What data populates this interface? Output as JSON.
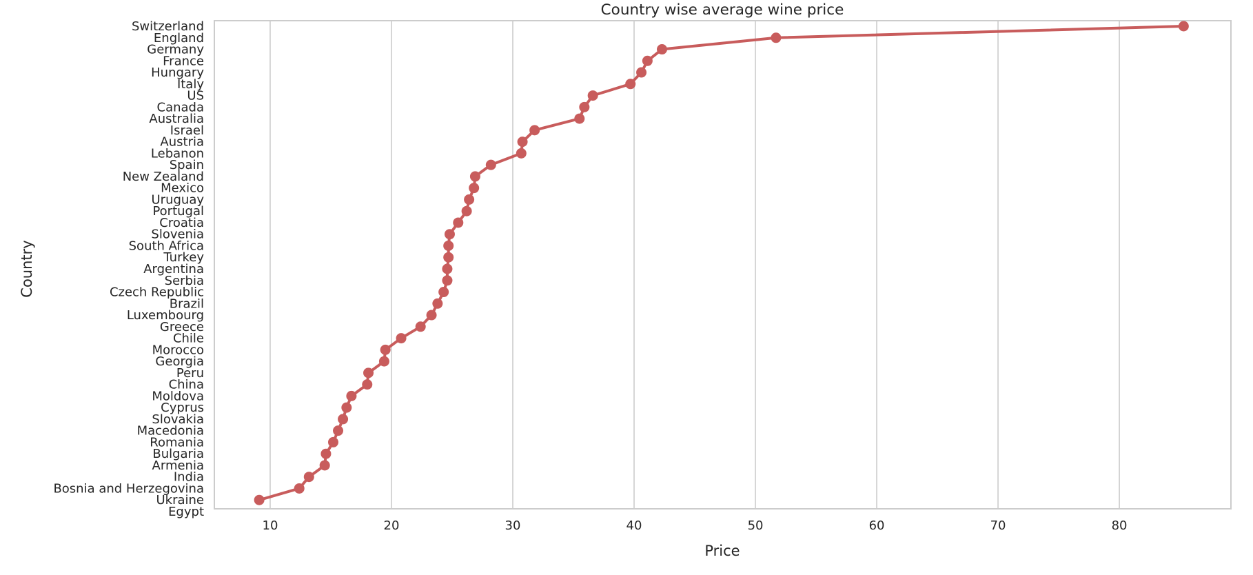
{
  "chart_data": {
    "type": "line",
    "title": "Country wise average wine price",
    "xlabel": "Price",
    "ylabel": "Country",
    "xlim": [
      5.4,
      89.2
    ],
    "x_ticks": [
      10,
      20,
      30,
      40,
      50,
      60,
      70,
      80
    ],
    "grid": "vertical",
    "line_color": "#c85c5c",
    "background_color": "#ffffff",
    "grid_color": "#cccccc",
    "categories": [
      "Switzerland",
      "England",
      "Germany",
      "France",
      "Hungary",
      "Italy",
      "US",
      "Canada",
      "Australia",
      "Israel",
      "Austria",
      "Lebanon",
      "Spain",
      "New Zealand",
      "Mexico",
      "Uruguay",
      "Portugal",
      "Croatia",
      "Slovenia",
      "South Africa",
      "Turkey",
      "Argentina",
      "Serbia",
      "Czech Republic",
      "Brazil",
      "Luxembourg",
      "Greece",
      "Chile",
      "Morocco",
      "Georgia",
      "Peru",
      "China",
      "Moldova",
      "Cyprus",
      "Slovakia",
      "Macedonia",
      "Romania",
      "Bulgaria",
      "Armenia",
      "India",
      "Bosnia and Herzegovina",
      "Ukraine",
      "Egypt"
    ],
    "values": [
      85.3,
      51.7,
      42.3,
      41.1,
      40.6,
      39.7,
      36.6,
      35.9,
      35.5,
      31.8,
      30.8,
      30.7,
      28.2,
      26.9,
      26.8,
      26.4,
      26.2,
      25.5,
      24.8,
      24.7,
      24.7,
      24.6,
      24.6,
      24.3,
      23.8,
      23.3,
      22.4,
      20.8,
      19.5,
      19.4,
      18.1,
      18.0,
      16.7,
      16.3,
      16.0,
      15.6,
      15.2,
      14.6,
      14.5,
      13.2,
      12.4,
      9.1,
      null
    ]
  }
}
